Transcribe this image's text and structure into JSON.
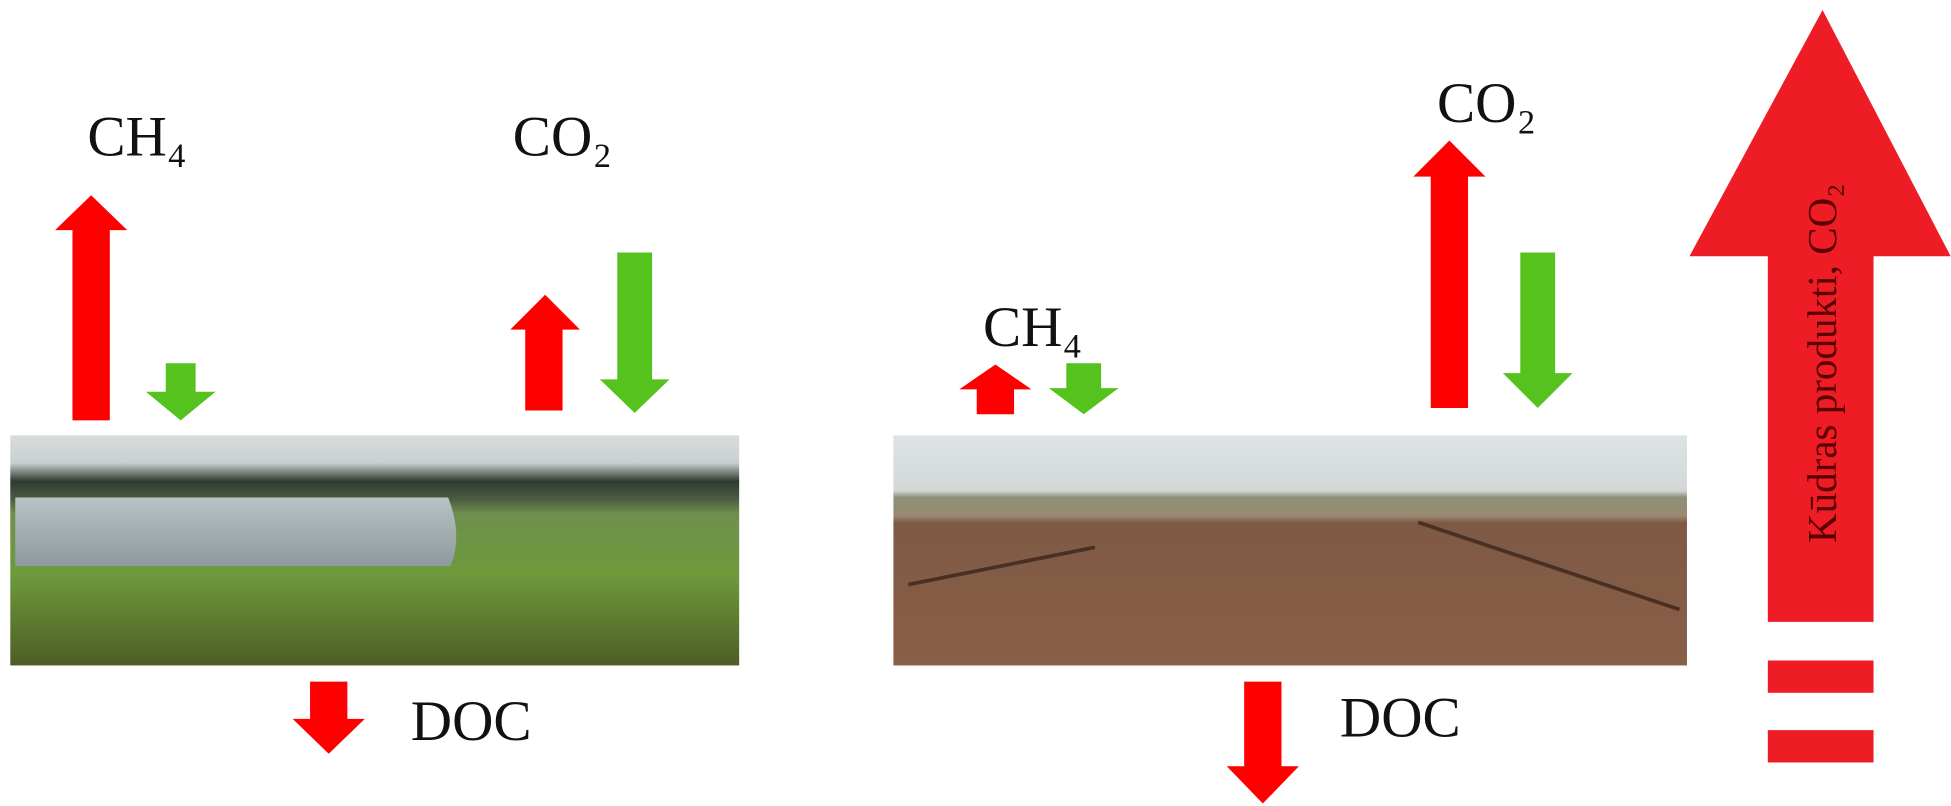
{
  "left": {
    "ch4_label": "CH₄",
    "co2_label": "CO₂",
    "doc_label": "DOC"
  },
  "right": {
    "ch4_label": "CH₄",
    "co2_label": "CO₂",
    "doc_label": "DOC"
  },
  "side_arrow": {
    "label": "Kūdras produkti, CO₂"
  }
}
